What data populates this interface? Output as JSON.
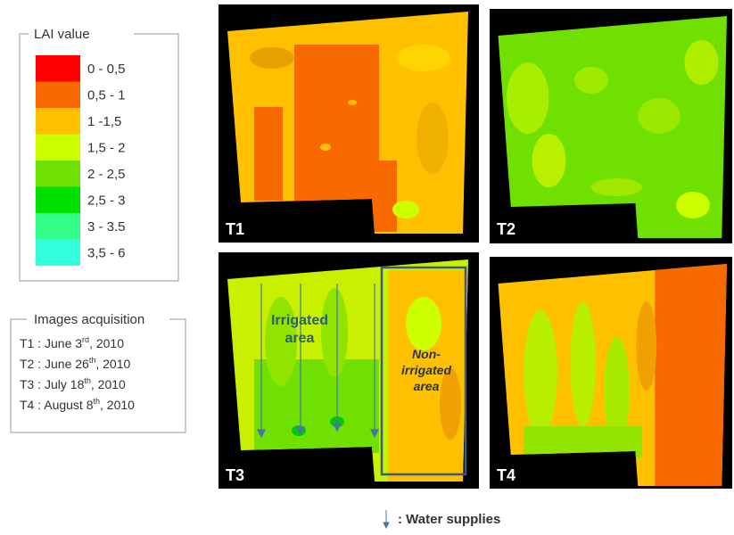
{
  "legend": {
    "title": "LAI value",
    "items": [
      {
        "label": "0 - 0,5",
        "color": "#ff0000"
      },
      {
        "label": "0,5 - 1",
        "color": "#f86a00"
      },
      {
        "label": "1 -1,5",
        "color": "#ffc000"
      },
      {
        "label": "1,5 - 2",
        "color": "#ccff00"
      },
      {
        "label": "2 - 2,5",
        "color": "#70e000"
      },
      {
        "label": "2,5 - 3",
        "color": "#00e000"
      },
      {
        "label": "3 - 3.5",
        "color": "#33ff88"
      },
      {
        "label": "3,5 - 6",
        "color": "#33ffdd"
      }
    ]
  },
  "acquisition": {
    "title": "Images acquisition",
    "dates": [
      {
        "prefix": "T1 : June 3",
        "sup": "rd",
        "suffix": ", 2010"
      },
      {
        "prefix": "T2 : June 26",
        "sup": "th",
        "suffix": ", 2010"
      },
      {
        "prefix": "T3 : July 18",
        "sup": "th",
        "suffix": ", 2010"
      },
      {
        "prefix": "T4 : August 8",
        "sup": "th",
        "suffix": ", 2010"
      }
    ]
  },
  "panels": [
    {
      "label": "T1"
    },
    {
      "label": "T2"
    },
    {
      "label": "T3"
    },
    {
      "label": "T4"
    }
  ],
  "annotations": {
    "irrigated": [
      "Irrigated",
      "area"
    ],
    "non_irrigated": [
      "Non-",
      "irrigated",
      "area"
    ],
    "water_supplies": ": Water supplies"
  }
}
